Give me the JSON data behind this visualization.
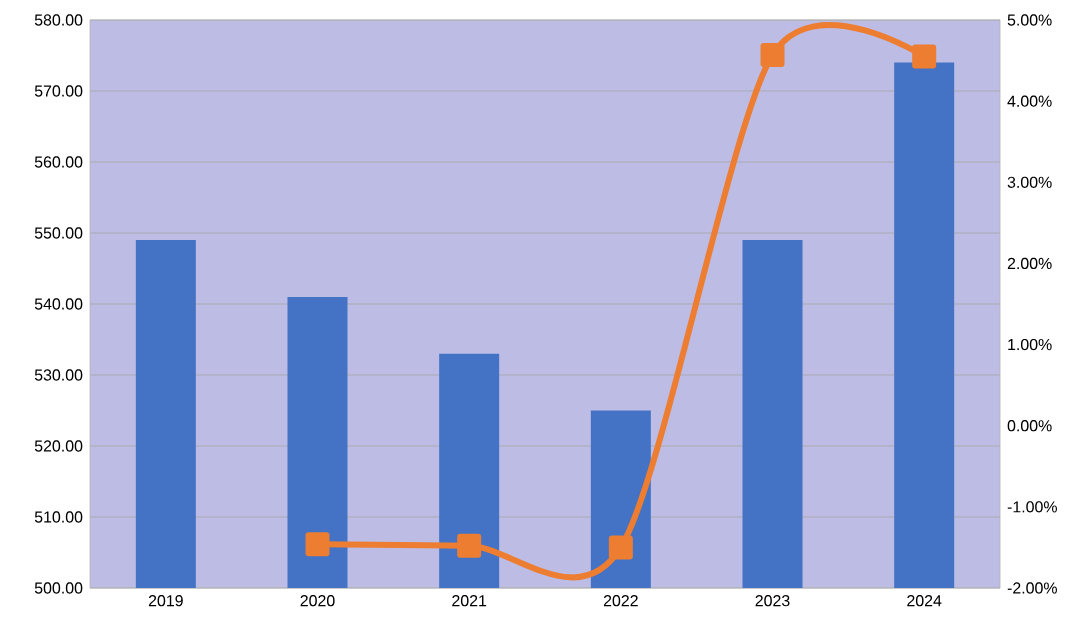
{
  "chart_data": {
    "type": "bar",
    "categories": [
      "2019",
      "2020",
      "2021",
      "2022",
      "2023",
      "2024"
    ],
    "series": [
      {
        "color": "#4472c4",
        "values": [
          549,
          541,
          533,
          525,
          549,
          574
        ]
      },
      {
        "type": "line",
        "axis": "y2",
        "color": "#ed7d31",
        "marker": "square",
        "values": [
          null,
          -1.46,
          -1.48,
          -1.5,
          4.57,
          4.55
        ]
      }
    ],
    "ylim": [
      500,
      580
    ],
    "yticks": [
      {
        "value": 500,
        "label": "500.00"
      },
      {
        "value": 510,
        "label": "510.00"
      },
      {
        "value": 520,
        "label": "520.00"
      },
      {
        "value": 530,
        "label": "530.00"
      },
      {
        "value": 540,
        "label": "540.00"
      },
      {
        "value": 550,
        "label": "550.00"
      },
      {
        "value": 560,
        "label": "560.00"
      },
      {
        "value": 570,
        "label": "570.00"
      },
      {
        "value": 580,
        "label": "580.00"
      }
    ],
    "y2lim": [
      -2,
      5
    ],
    "y2ticks": [
      {
        "value": -2,
        "label": "-2.00%"
      },
      {
        "value": -1,
        "label": "-1.00%"
      },
      {
        "value": 0,
        "label": "0.00%"
      },
      {
        "value": 1,
        "label": "1.00%"
      },
      {
        "value": 2,
        "label": "2.00%"
      },
      {
        "value": 3,
        "label": "3.00%"
      },
      {
        "value": 4,
        "label": "4.00%"
      },
      {
        "value": 5,
        "label": "5.00%"
      }
    ],
    "grid": "y"
  }
}
